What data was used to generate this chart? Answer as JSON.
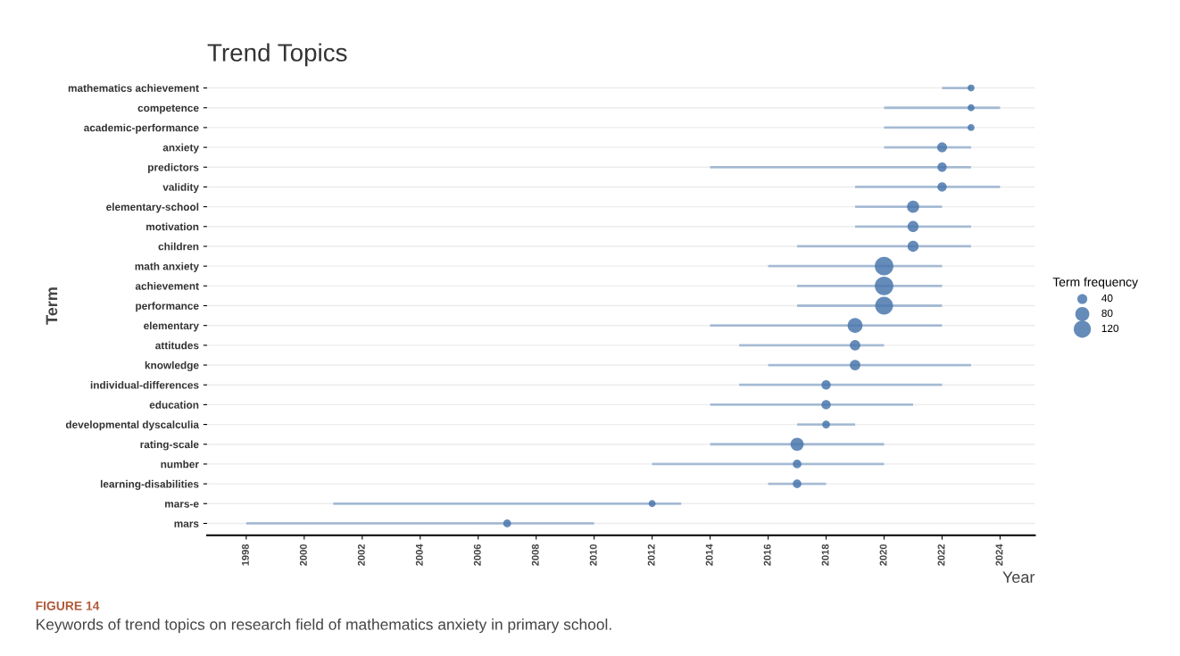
{
  "chart_data": {
    "type": "bubble",
    "orientation": "horizontal",
    "title": "Trend Topics",
    "xlabel": "Year",
    "ylabel": "Term",
    "legend_title": "Term frequency",
    "categories": [
      "mathematics achievement",
      "competence",
      "academic-performance",
      "anxiety",
      "predictors",
      "validity",
      "elementary-school",
      "motivation",
      "children",
      "math anxiety",
      "achievement",
      "performance",
      "elementary",
      "attitudes",
      "knowledge",
      "individual-differences",
      "education",
      "developmental dyscalculia",
      "rating-scale",
      "number",
      "learning-disabilities",
      "mars-e",
      "mars"
    ],
    "series": [
      {
        "color": "#4a77ad",
        "values": [
          2023,
          2023,
          2023,
          2022,
          2022,
          2022,
          2021,
          2021,
          2021,
          2020,
          2020,
          2020,
          2019,
          2019,
          2019,
          2018,
          2018,
          2018,
          2017,
          2017,
          2017,
          2012,
          2007
        ],
        "errors": [
          [
            2022,
            2023
          ],
          [
            2020,
            2024
          ],
          [
            2020,
            2023
          ],
          [
            2020,
            2023
          ],
          [
            2014,
            2023
          ],
          [
            2019,
            2024
          ],
          [
            2019,
            2022
          ],
          [
            2019,
            2023
          ],
          [
            2017,
            2023
          ],
          [
            2016,
            2022
          ],
          [
            2017,
            2022
          ],
          [
            2017,
            2022
          ],
          [
            2014,
            2022
          ],
          [
            2015,
            2020
          ],
          [
            2016,
            2023
          ],
          [
            2015,
            2022
          ],
          [
            2014,
            2021
          ],
          [
            2017,
            2019
          ],
          [
            2014,
            2020
          ],
          [
            2012,
            2020
          ],
          [
            2016,
            2018
          ],
          [
            2001,
            2013
          ],
          [
            1998,
            2010
          ]
        ],
        "sizes": [
          20,
          20,
          20,
          40,
          35,
          35,
          60,
          50,
          50,
          140,
          140,
          130,
          90,
          45,
          45,
          35,
          35,
          25,
          70,
          30,
          30,
          20,
          25
        ]
      }
    ],
    "size_legend": [
      40,
      80,
      120
    ],
    "xlim": [
      1996.65,
      2025.2
    ],
    "xticks": [
      1998,
      2000,
      2002,
      2004,
      2006,
      2008,
      2010,
      2012,
      2014,
      2016,
      2018,
      2020,
      2022,
      2024
    ],
    "grid": "y",
    "annotations": [
      "FIGURE 14",
      "Keywords of trend topics on research field of mathematics anxiety in primary school."
    ]
  }
}
